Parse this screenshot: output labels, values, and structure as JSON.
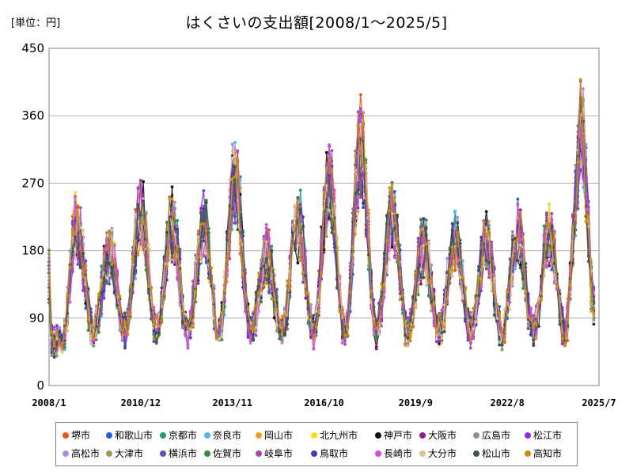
{
  "unit_label": "[単位：円]",
  "chart_data": {
    "type": "line",
    "title": "はくさいの支出額[2008/1～2025/5]",
    "xlabel": "",
    "ylabel": "",
    "ylim": [
      0,
      450
    ],
    "yticks": [
      "0",
      "90",
      "180",
      "270",
      "360",
      "450"
    ],
    "xticks": [
      "2008/1",
      "2010/12",
      "2013/11",
      "2016/10",
      "2019/9",
      "2022/8",
      "2025/7"
    ],
    "grid": true,
    "legend_position": "bottom",
    "season_peaks": [
      {
        "date": "2008/12",
        "value": 230
      },
      {
        "date": "2009/12",
        "value": 200
      },
      {
        "date": "2010/12",
        "value": 265
      },
      {
        "date": "2011/12",
        "value": 245
      },
      {
        "date": "2012/12",
        "value": 240
      },
      {
        "date": "2013/12",
        "value": 320
      },
      {
        "date": "2014/12",
        "value": 200
      },
      {
        "date": "2015/12",
        "value": 250
      },
      {
        "date": "2016/12",
        "value": 310
      },
      {
        "date": "2017/12",
        "value": 370
      },
      {
        "date": "2018/12",
        "value": 260
      },
      {
        "date": "2019/12",
        "value": 215
      },
      {
        "date": "2020/12",
        "value": 220
      },
      {
        "date": "2021/12",
        "value": 215
      },
      {
        "date": "2022/12",
        "value": 230
      },
      {
        "date": "2023/12",
        "value": 235
      },
      {
        "date": "2024/12",
        "value": 355
      }
    ],
    "series": [
      {
        "name": "堺市",
        "color": "#e8541a"
      },
      {
        "name": "和歌山市",
        "color": "#1f5fdc"
      },
      {
        "name": "京都市",
        "color": "#1a9e6e"
      },
      {
        "name": "奈良市",
        "color": "#4fb8e8"
      },
      {
        "name": "岡山市",
        "color": "#e8a317"
      },
      {
        "name": "北九州市",
        "color": "#f2e41a"
      },
      {
        "name": "神戸市",
        "color": "#111111"
      },
      {
        "name": "大阪市",
        "color": "#8e1a8e"
      },
      {
        "name": "広島市",
        "color": "#8f8f8f"
      },
      {
        "name": "松江市",
        "color": "#8a2be2"
      },
      {
        "name": "高松市",
        "color": "#b48ad6"
      },
      {
        "name": "大津市",
        "color": "#a39a52"
      },
      {
        "name": "横浜市",
        "color": "#6a4fb0"
      },
      {
        "name": "佐賀市",
        "color": "#3a8a3a"
      },
      {
        "name": "岐阜市",
        "color": "#a64ca6"
      },
      {
        "name": "鳥取市",
        "color": "#4637b8"
      },
      {
        "name": "長崎市",
        "color": "#d94ad9"
      },
      {
        "name": "大分市",
        "color": "#e0c096"
      },
      {
        "name": "松山市",
        "color": "#3b5a46"
      },
      {
        "name": "高知市",
        "color": "#d28a12"
      }
    ]
  }
}
